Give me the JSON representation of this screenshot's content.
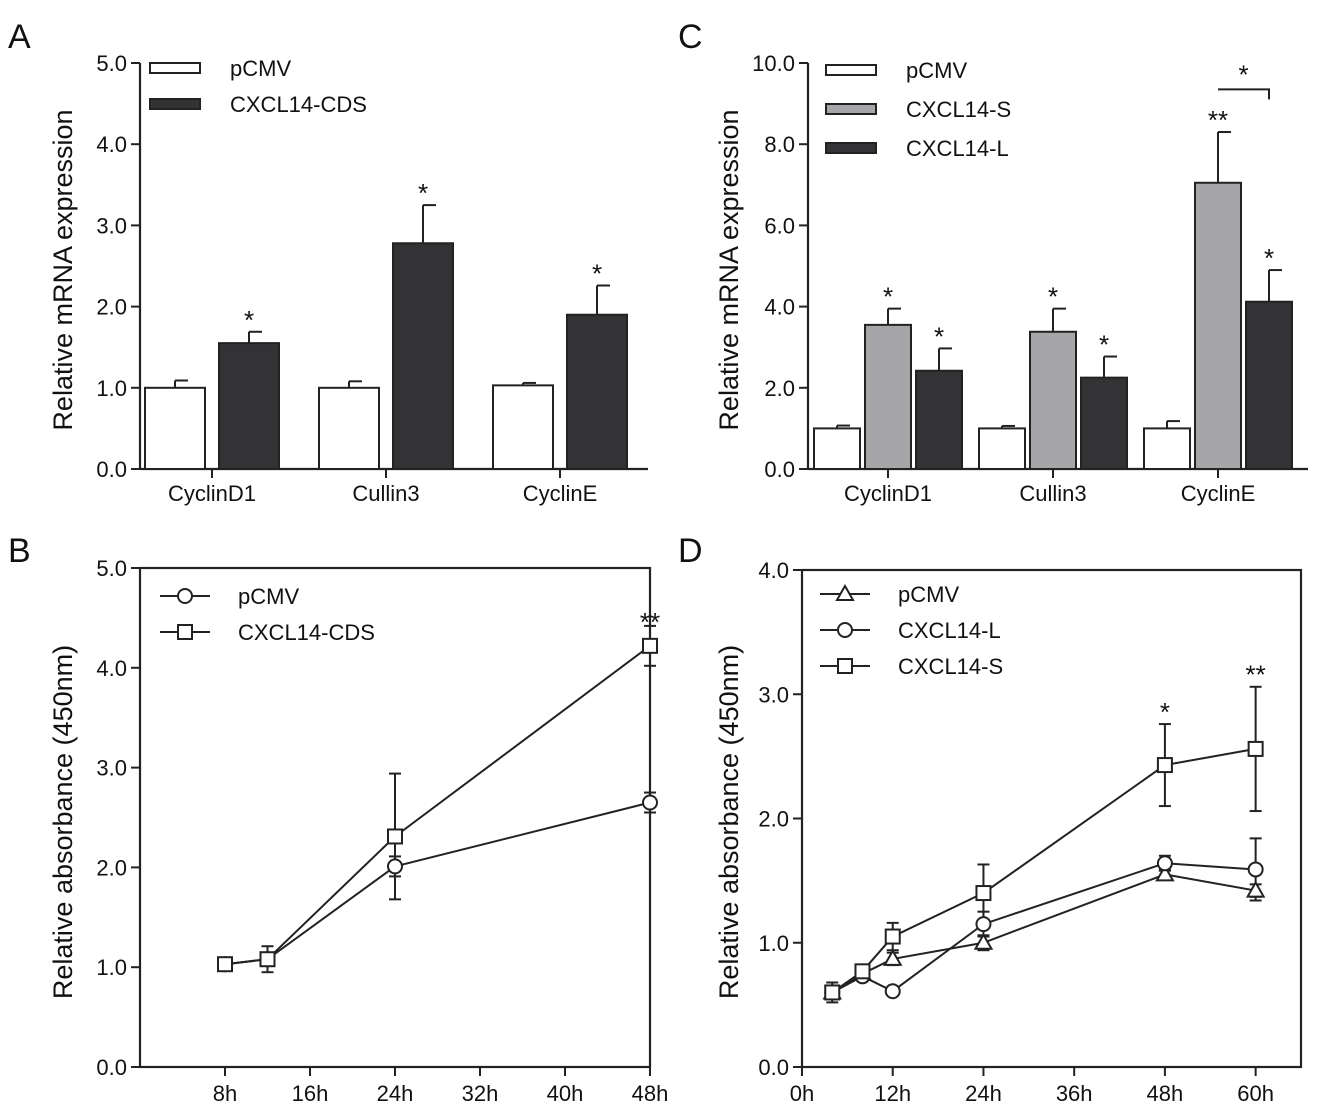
{
  "colors": {
    "white_bar": "#ffffff",
    "gray_bar": "#a6a6a8",
    "dark_bar": "#333335",
    "stroke": "#222222"
  },
  "chart_data": [
    {
      "panel": "A",
      "type": "bar",
      "ylabel": "Relative mRNA expression",
      "ylim": [
        0,
        5
      ],
      "yticks": [
        "0.0",
        "1.0",
        "2.0",
        "3.0",
        "4.0",
        "5.0"
      ],
      "categories": [
        "CyclinD1",
        "Cullin3",
        "CyclinE"
      ],
      "series": [
        {
          "name": "pCMV",
          "color": "#ffffff",
          "values": [
            1.0,
            1.0,
            1.03
          ],
          "errors": [
            0.09,
            0.08,
            0.03
          ],
          "marks": [
            "",
            "",
            ""
          ]
        },
        {
          "name": "CXCL14-CDS",
          "color": "#333335",
          "values": [
            1.55,
            2.78,
            1.9
          ],
          "errors": [
            0.14,
            0.47,
            0.36
          ],
          "marks": [
            "*",
            "*",
            "*"
          ]
        }
      ],
      "legend_position": "top-left"
    },
    {
      "panel": "C",
      "type": "bar",
      "ylabel": "Relative mRNA expression",
      "ylim": [
        0,
        10
      ],
      "yticks": [
        "0.0",
        "2.0",
        "4.0",
        "6.0",
        "8.0",
        "10.0"
      ],
      "categories": [
        "CyclinD1",
        "Cullin3",
        "CyclinE"
      ],
      "series": [
        {
          "name": "pCMV",
          "color": "#ffffff",
          "values": [
            1.0,
            1.0,
            1.0
          ],
          "errors": [
            0.07,
            0.06,
            0.18
          ],
          "marks": [
            "",
            "",
            ""
          ]
        },
        {
          "name": "CXCL14-S",
          "color": "#a6a6a8",
          "values": [
            3.55,
            3.38,
            7.05
          ],
          "errors": [
            0.4,
            0.57,
            1.25
          ],
          "marks": [
            "*",
            "*",
            "**"
          ]
        },
        {
          "name": "CXCL14-L",
          "color": "#333335",
          "values": [
            2.42,
            2.25,
            4.12
          ],
          "errors": [
            0.55,
            0.52,
            0.78
          ],
          "marks": [
            "*",
            "*",
            "*"
          ]
        }
      ],
      "bracket": {
        "category": "CyclinE",
        "from_series": "CXCL14-S",
        "to_series": "CXCL14-L",
        "y": 9.35,
        "mark": "*"
      },
      "legend_position": "top-left"
    },
    {
      "panel": "B",
      "type": "line",
      "ylabel": "Relative absorbance (450nm)",
      "ylim": [
        0,
        5
      ],
      "yticks": [
        "0.0",
        "1.0",
        "2.0",
        "3.0",
        "4.0",
        "5.0"
      ],
      "xlim": [
        0,
        48
      ],
      "xticks": [
        8,
        16,
        24,
        32,
        40,
        48
      ],
      "xticklabels": [
        "8h",
        "16h",
        "24h",
        "32h",
        "40h",
        "48h"
      ],
      "x": [
        8,
        12,
        24,
        48
      ],
      "series": [
        {
          "name": "pCMV",
          "marker": "circle",
          "values": [
            1.03,
            1.08,
            2.01,
            2.65
          ],
          "errors": [
            0.06,
            0.06,
            0.1,
            0.1
          ]
        },
        {
          "name": "CXCL14-CDS",
          "marker": "square",
          "values": [
            1.03,
            1.08,
            2.31,
            4.22
          ],
          "errors": [
            0.05,
            0.13,
            0.63,
            0.2
          ]
        }
      ],
      "annotations": [
        {
          "x": 48,
          "y": 4.45,
          "text": "**"
        }
      ],
      "legend_position": "top-left"
    },
    {
      "panel": "D",
      "type": "line",
      "ylabel": "Relative absorbance (450nm)",
      "ylim": [
        0,
        4
      ],
      "yticks": [
        "0.0",
        "1.0",
        "2.0",
        "3.0",
        "4.0"
      ],
      "xlim": [
        0,
        66
      ],
      "xticks": [
        0,
        12,
        24,
        36,
        48,
        60
      ],
      "xticklabels": [
        "0h",
        "12h",
        "24h",
        "36h",
        "48h",
        "60h"
      ],
      "x": [
        4,
        8,
        12,
        24,
        48,
        60
      ],
      "series": [
        {
          "name": "pCMV",
          "marker": "triangle",
          "values": [
            0.6,
            0.75,
            0.87,
            1.0,
            1.55,
            1.42
          ],
          "errors": [
            0.05,
            0.04,
            0.05,
            0.06,
            0.04,
            0.05
          ]
        },
        {
          "name": "CXCL14-L",
          "marker": "circle",
          "values": [
            0.6,
            0.73,
            0.61,
            1.15,
            1.64,
            1.59
          ],
          "errors": [
            0.05,
            0.04,
            0.03,
            0.1,
            0.06,
            0.25
          ]
        },
        {
          "name": "CXCL14-S",
          "marker": "square",
          "values": [
            0.6,
            0.77,
            1.05,
            1.4,
            2.43,
            2.56
          ],
          "errors": [
            0.08,
            0.04,
            0.11,
            0.23,
            0.33,
            0.5
          ]
        }
      ],
      "annotations": [
        {
          "x": 48,
          "y": 2.85,
          "text": "*"
        },
        {
          "x": 60,
          "y": 3.15,
          "text": "**"
        }
      ],
      "legend_position": "top-left"
    }
  ]
}
